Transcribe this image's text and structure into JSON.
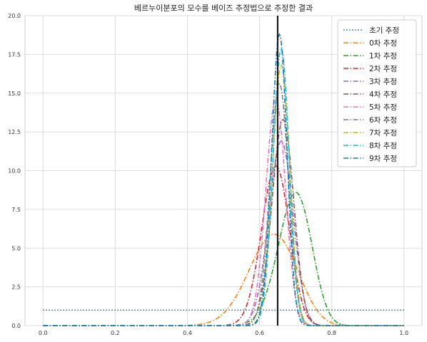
{
  "chart_data": {
    "type": "line",
    "title": "베르누이분포의 모수를 베이즈 추정법으로 추정한 결과",
    "xlim": [
      -0.05,
      1.05
    ],
    "ylim": [
      0,
      20
    ],
    "xticks": [
      0.0,
      0.2,
      0.4,
      0.6,
      0.8,
      1.0
    ],
    "xtick_labels": [
      "0.0",
      "0.2",
      "0.4",
      "0.6",
      "0.8",
      "1.0"
    ],
    "yticks": [
      0,
      2.5,
      5,
      7.5,
      10,
      12.5,
      15,
      17.5,
      20
    ],
    "ytick_labels": [
      "0.0",
      "2.5",
      "5.0",
      "7.5",
      "10.0",
      "12.5",
      "15.0",
      "17.5",
      "20.0"
    ],
    "grid": true,
    "legend_position": "top-right",
    "reference_line": {
      "x": 0.65,
      "color": "#000000"
    },
    "series": [
      {
        "name": "초기 추정",
        "kind": "uniform",
        "peak_x": 0.5,
        "peak_y": 1.0,
        "color": "#1f77b4",
        "dash": "dotted"
      },
      {
        "name": "0차 추정",
        "kind": "peak",
        "peak_x": 0.64,
        "peak_y": 5.9,
        "color": "#ff7f0e",
        "dash": "dashdot"
      },
      {
        "name": "1차 추정",
        "kind": "peak",
        "peak_x": 0.7,
        "peak_y": 8.6,
        "color": "#2ca02c",
        "dash": "dashdot"
      },
      {
        "name": "2차 추정",
        "kind": "peak",
        "peak_x": 0.645,
        "peak_y": 10.3,
        "color": "#d62728",
        "dash": "dashdot"
      },
      {
        "name": "3차 추정",
        "kind": "peak",
        "peak_x": 0.66,
        "peak_y": 11.9,
        "color": "#9467bd",
        "dash": "dashdot"
      },
      {
        "name": "4차 추정",
        "kind": "peak",
        "peak_x": 0.665,
        "peak_y": 13.3,
        "color": "#8c564b",
        "dash": "dashdot"
      },
      {
        "name": "5차 추정",
        "kind": "peak",
        "peak_x": 0.645,
        "peak_y": 14.6,
        "color": "#e377c2",
        "dash": "dashdot"
      },
      {
        "name": "6차 추정",
        "kind": "peak",
        "peak_x": 0.655,
        "peak_y": 15.6,
        "color": "#7f7f7f",
        "dash": "dashdot"
      },
      {
        "name": "7차 추정",
        "kind": "peak",
        "peak_x": 0.66,
        "peak_y": 16.8,
        "color": "#bcbd22",
        "dash": "dashdot"
      },
      {
        "name": "8차 추정",
        "kind": "peak",
        "peak_x": 0.66,
        "peak_y": 17.9,
        "color": "#17becf",
        "dash": "dashdot"
      },
      {
        "name": "9차 추정",
        "kind": "peak",
        "peak_x": 0.655,
        "peak_y": 18.8,
        "color": "#1f77b4",
        "dash": "dashdot"
      }
    ]
  }
}
